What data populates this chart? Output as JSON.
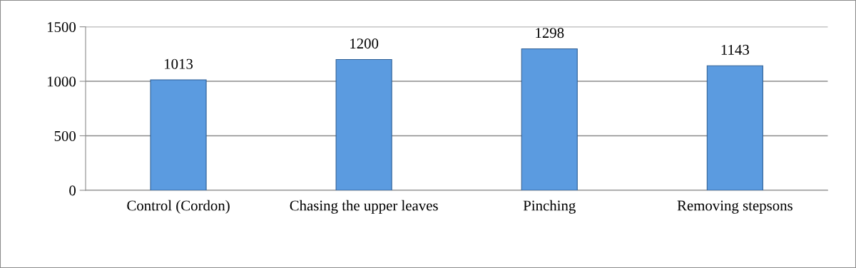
{
  "chart_data": {
    "type": "bar",
    "categories": [
      "Control (Cordon)",
      "Chasing the upper leaves",
      "Pinching",
      "Removing stepsons"
    ],
    "values": [
      1013,
      1200,
      1298,
      1143
    ],
    "color": "#5b9be0",
    "ylim": [
      0,
      1500
    ],
    "yticks": [
      0,
      500,
      1000,
      1500
    ],
    "grid": "y",
    "data_labels": true
  }
}
